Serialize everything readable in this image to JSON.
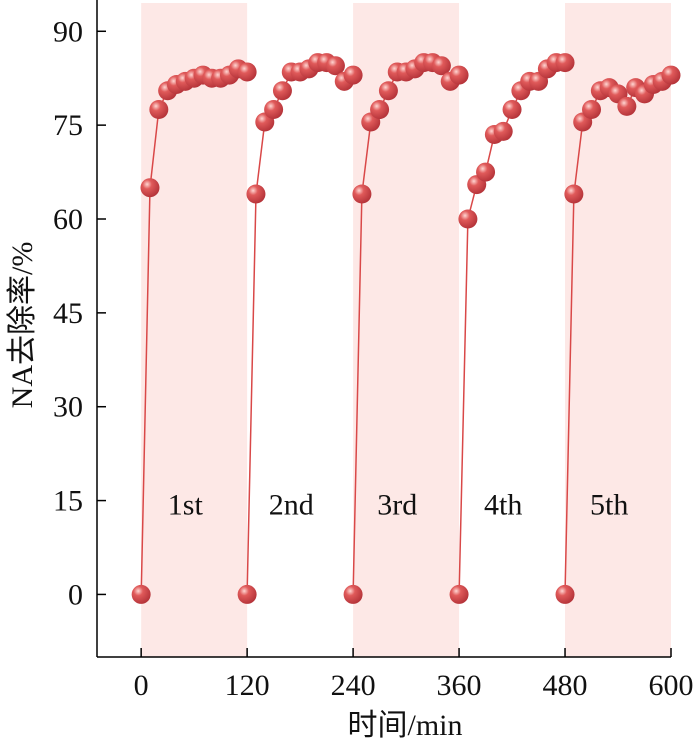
{
  "chart_data": {
    "type": "scatter",
    "title": "",
    "xlabel": "时间/min",
    "ylabel": "NA去除率/%",
    "xlim": [
      -50,
      600
    ],
    "ylim": [
      -10,
      95
    ],
    "xticks": [
      0,
      120,
      240,
      360,
      480,
      600
    ],
    "yticks": [
      0,
      15,
      30,
      45,
      60,
      75,
      90
    ],
    "marker_color": "#e05a5a",
    "line_color": "#d94848",
    "band_color": "#fde8e6",
    "shaded_bands": [
      [
        0,
        120
      ],
      [
        240,
        360
      ],
      [
        480,
        600
      ]
    ],
    "cycles": [
      {
        "label": "1st",
        "label_x": 50,
        "label_y": 15,
        "x": [
          0,
          10,
          20,
          30,
          40,
          50,
          60,
          70,
          80,
          90,
          100,
          110,
          120
        ],
        "y": [
          0,
          65,
          77.5,
          80.5,
          81.5,
          82,
          82.5,
          83,
          82.5,
          82.5,
          83,
          84,
          83.5
        ]
      },
      {
        "label": "2nd",
        "label_x": 170,
        "label_y": 15,
        "x": [
          120,
          130,
          140,
          150,
          160,
          170,
          180,
          190,
          200,
          210,
          220,
          230,
          240
        ],
        "y": [
          0,
          64,
          75.5,
          77.5,
          80.5,
          83.5,
          83.5,
          84,
          85,
          85,
          84.5,
          82,
          83
        ]
      },
      {
        "label": "3rd",
        "label_x": 290,
        "label_y": 15,
        "x": [
          240,
          250,
          260,
          270,
          280,
          290,
          300,
          310,
          320,
          330,
          340,
          350,
          360
        ],
        "y": [
          0,
          64,
          75.5,
          77.5,
          80.5,
          83.5,
          83.5,
          84,
          85,
          85,
          84.5,
          82,
          83
        ]
      },
      {
        "label": "4th",
        "label_x": 410,
        "label_y": 15,
        "x": [
          360,
          370,
          380,
          390,
          400,
          410,
          420,
          430,
          440,
          450,
          460,
          470,
          480
        ],
        "y": [
          0,
          60,
          65.5,
          67.5,
          73.5,
          74,
          77.5,
          80.5,
          82,
          82,
          84,
          85,
          85
        ]
      },
      {
        "label": "5th",
        "label_x": 530,
        "label_y": 15,
        "x": [
          480,
          490,
          500,
          510,
          520,
          530,
          540,
          550,
          560,
          570,
          580,
          590,
          600
        ],
        "y": [
          0,
          64,
          75.5,
          77.5,
          80.5,
          81,
          80,
          78,
          81,
          80,
          81.5,
          82,
          83
        ]
      }
    ]
  }
}
